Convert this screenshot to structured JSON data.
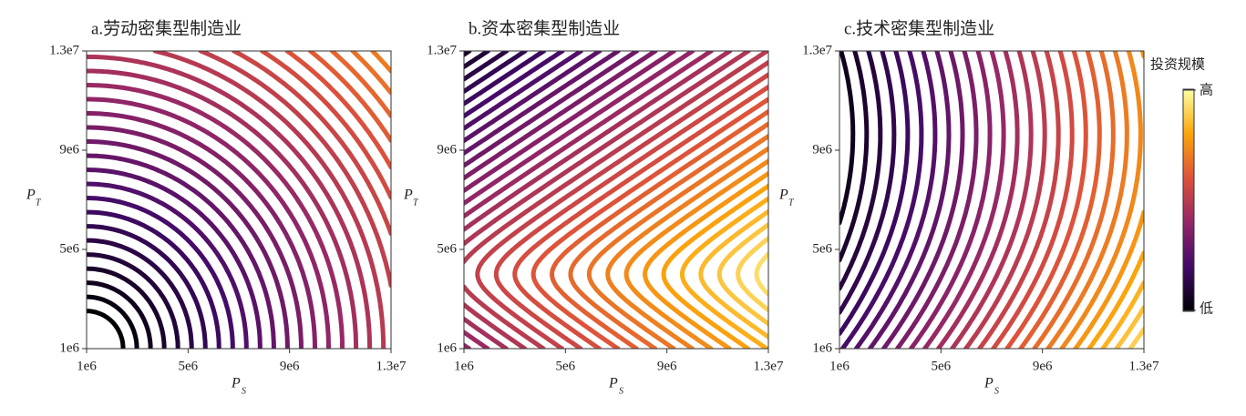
{
  "chart_data": [
    {
      "type": "contour",
      "title": "a.劳动密集型制造业",
      "x_label": "P",
      "x_label_sub": "S",
      "y_label": "P",
      "y_label_sub": "T",
      "xlim": [
        1000000,
        13000000
      ],
      "ylim": [
        1000000,
        13000000
      ],
      "xticks": [
        {
          "value": 1000000,
          "label": "1e6"
        },
        {
          "value": 5000000,
          "label": "5e6"
        },
        {
          "value": 9000000,
          "label": "9e6"
        },
        {
          "value": 13000000,
          "label": "1.3e7"
        }
      ],
      "yticks": [
        {
          "value": 1000000,
          "label": "1e6"
        },
        {
          "value": 5000000,
          "label": "5e6"
        },
        {
          "value": 9000000,
          "label": "9e6"
        },
        {
          "value": 13000000,
          "label": "1.3e7"
        }
      ]
    },
    {
      "type": "contour",
      "title": "b.资本密集型制造业",
      "x_label": "P",
      "x_label_sub": "S",
      "y_label": "P",
      "y_label_sub": "T",
      "xlim": [
        1000000,
        13000000
      ],
      "ylim": [
        1000000,
        13000000
      ],
      "xticks": [
        {
          "value": 1000000,
          "label": "1e6"
        },
        {
          "value": 5000000,
          "label": "5e6"
        },
        {
          "value": 9000000,
          "label": "9e6"
        },
        {
          "value": 13000000,
          "label": "1.3e7"
        }
      ],
      "yticks": [
        {
          "value": 1000000,
          "label": "1e6"
        },
        {
          "value": 5000000,
          "label": "5e6"
        },
        {
          "value": 9000000,
          "label": "9e6"
        },
        {
          "value": 13000000,
          "label": "1.3e7"
        }
      ]
    },
    {
      "type": "contour",
      "title": "c.技术密集型制造业",
      "x_label": "P",
      "x_label_sub": "S",
      "y_label": "P",
      "y_label_sub": "T",
      "xlim": [
        1000000,
        13000000
      ],
      "ylim": [
        1000000,
        13000000
      ],
      "xticks": [
        {
          "value": 1000000,
          "label": "1e6"
        },
        {
          "value": 5000000,
          "label": "5e6"
        },
        {
          "value": 9000000,
          "label": "9e6"
        },
        {
          "value": 13000000,
          "label": "1.3e7"
        }
      ],
      "yticks": [
        {
          "value": 1000000,
          "label": "1e6"
        },
        {
          "value": 5000000,
          "label": "5e6"
        },
        {
          "value": 9000000,
          "label": "9e6"
        },
        {
          "value": 13000000,
          "label": "1.3e7"
        }
      ],
      "colorbar": {
        "title": "投资规模",
        "high": "高",
        "low": "低"
      }
    }
  ]
}
